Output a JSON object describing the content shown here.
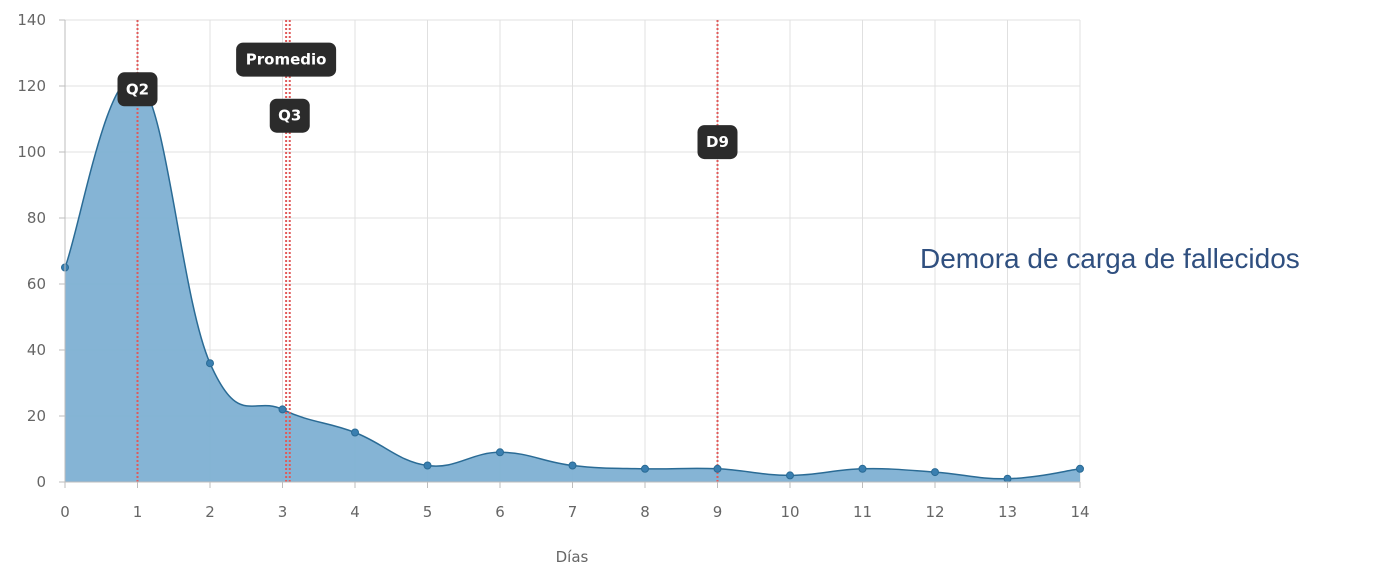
{
  "chart_data": {
    "type": "area",
    "title": "Demora de carga de fallecidos",
    "xlabel": "Días",
    "ylabel": "",
    "x": [
      0,
      1,
      2,
      3,
      4,
      5,
      6,
      7,
      8,
      9,
      10,
      11,
      12,
      13,
      14
    ],
    "y": [
      65,
      122,
      36,
      22,
      15,
      5,
      9,
      5,
      4,
      4,
      2,
      4,
      3,
      1,
      4
    ],
    "xlim": [
      0,
      14
    ],
    "ylim": [
      0,
      140
    ],
    "yticks": [
      0,
      20,
      40,
      60,
      80,
      100,
      120,
      140
    ],
    "xticks": [
      0,
      1,
      2,
      3,
      4,
      5,
      6,
      7,
      8,
      9,
      10,
      11,
      12,
      13,
      14
    ],
    "grid": true,
    "legend": "none",
    "markers": [
      {
        "label": "Q2",
        "x": 1,
        "label_y": 119
      },
      {
        "label": "Promedio",
        "x": 3.05,
        "label_y": 128
      },
      {
        "label": "Q3",
        "x": 3.1,
        "label_y": 111
      },
      {
        "label": "D9",
        "x": 9,
        "label_y": 103
      }
    ],
    "colors": {
      "fill": "#7eb0d3",
      "line": "#2a6b95",
      "point": "#3a7fb0",
      "marker_line": "#e05a5a",
      "label_bg": "#2b2b2b",
      "grid": "#e0e0e0"
    }
  }
}
